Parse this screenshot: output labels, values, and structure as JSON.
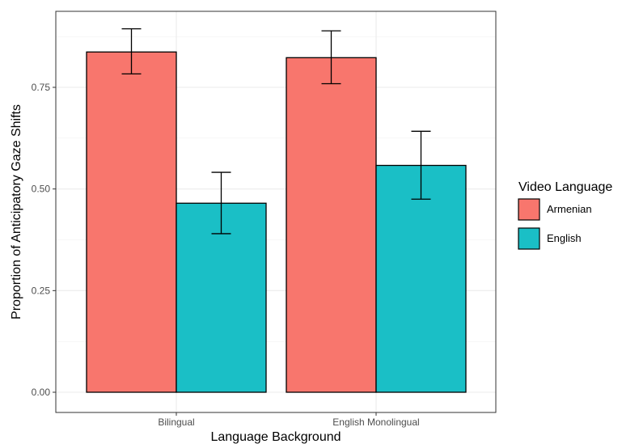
{
  "chart_data": {
    "type": "bar",
    "title": "",
    "xlabel": "Language Background",
    "ylabel": "Proportion of Anticipatory Gaze Shifts",
    "categories": [
      "Bilingual",
      "English Monolingual"
    ],
    "series": [
      {
        "name": "Armenian",
        "color": "#F8766D",
        "values": [
          0.837,
          0.823
        ],
        "error_low": [
          0.783,
          0.759
        ],
        "error_high": [
          0.894,
          0.889
        ]
      },
      {
        "name": "English",
        "color": "#1ABFC6",
        "values": [
          0.465,
          0.558
        ],
        "error_low": [
          0.39,
          0.475
        ],
        "error_high": [
          0.541,
          0.642
        ]
      }
    ],
    "ylim": [
      0,
      0.94
    ],
    "y_ticks": [
      "0.00",
      "0.25",
      "0.50",
      "0.75"
    ],
    "grid": true,
    "legend": {
      "title": "Video Language",
      "position": "right"
    }
  }
}
